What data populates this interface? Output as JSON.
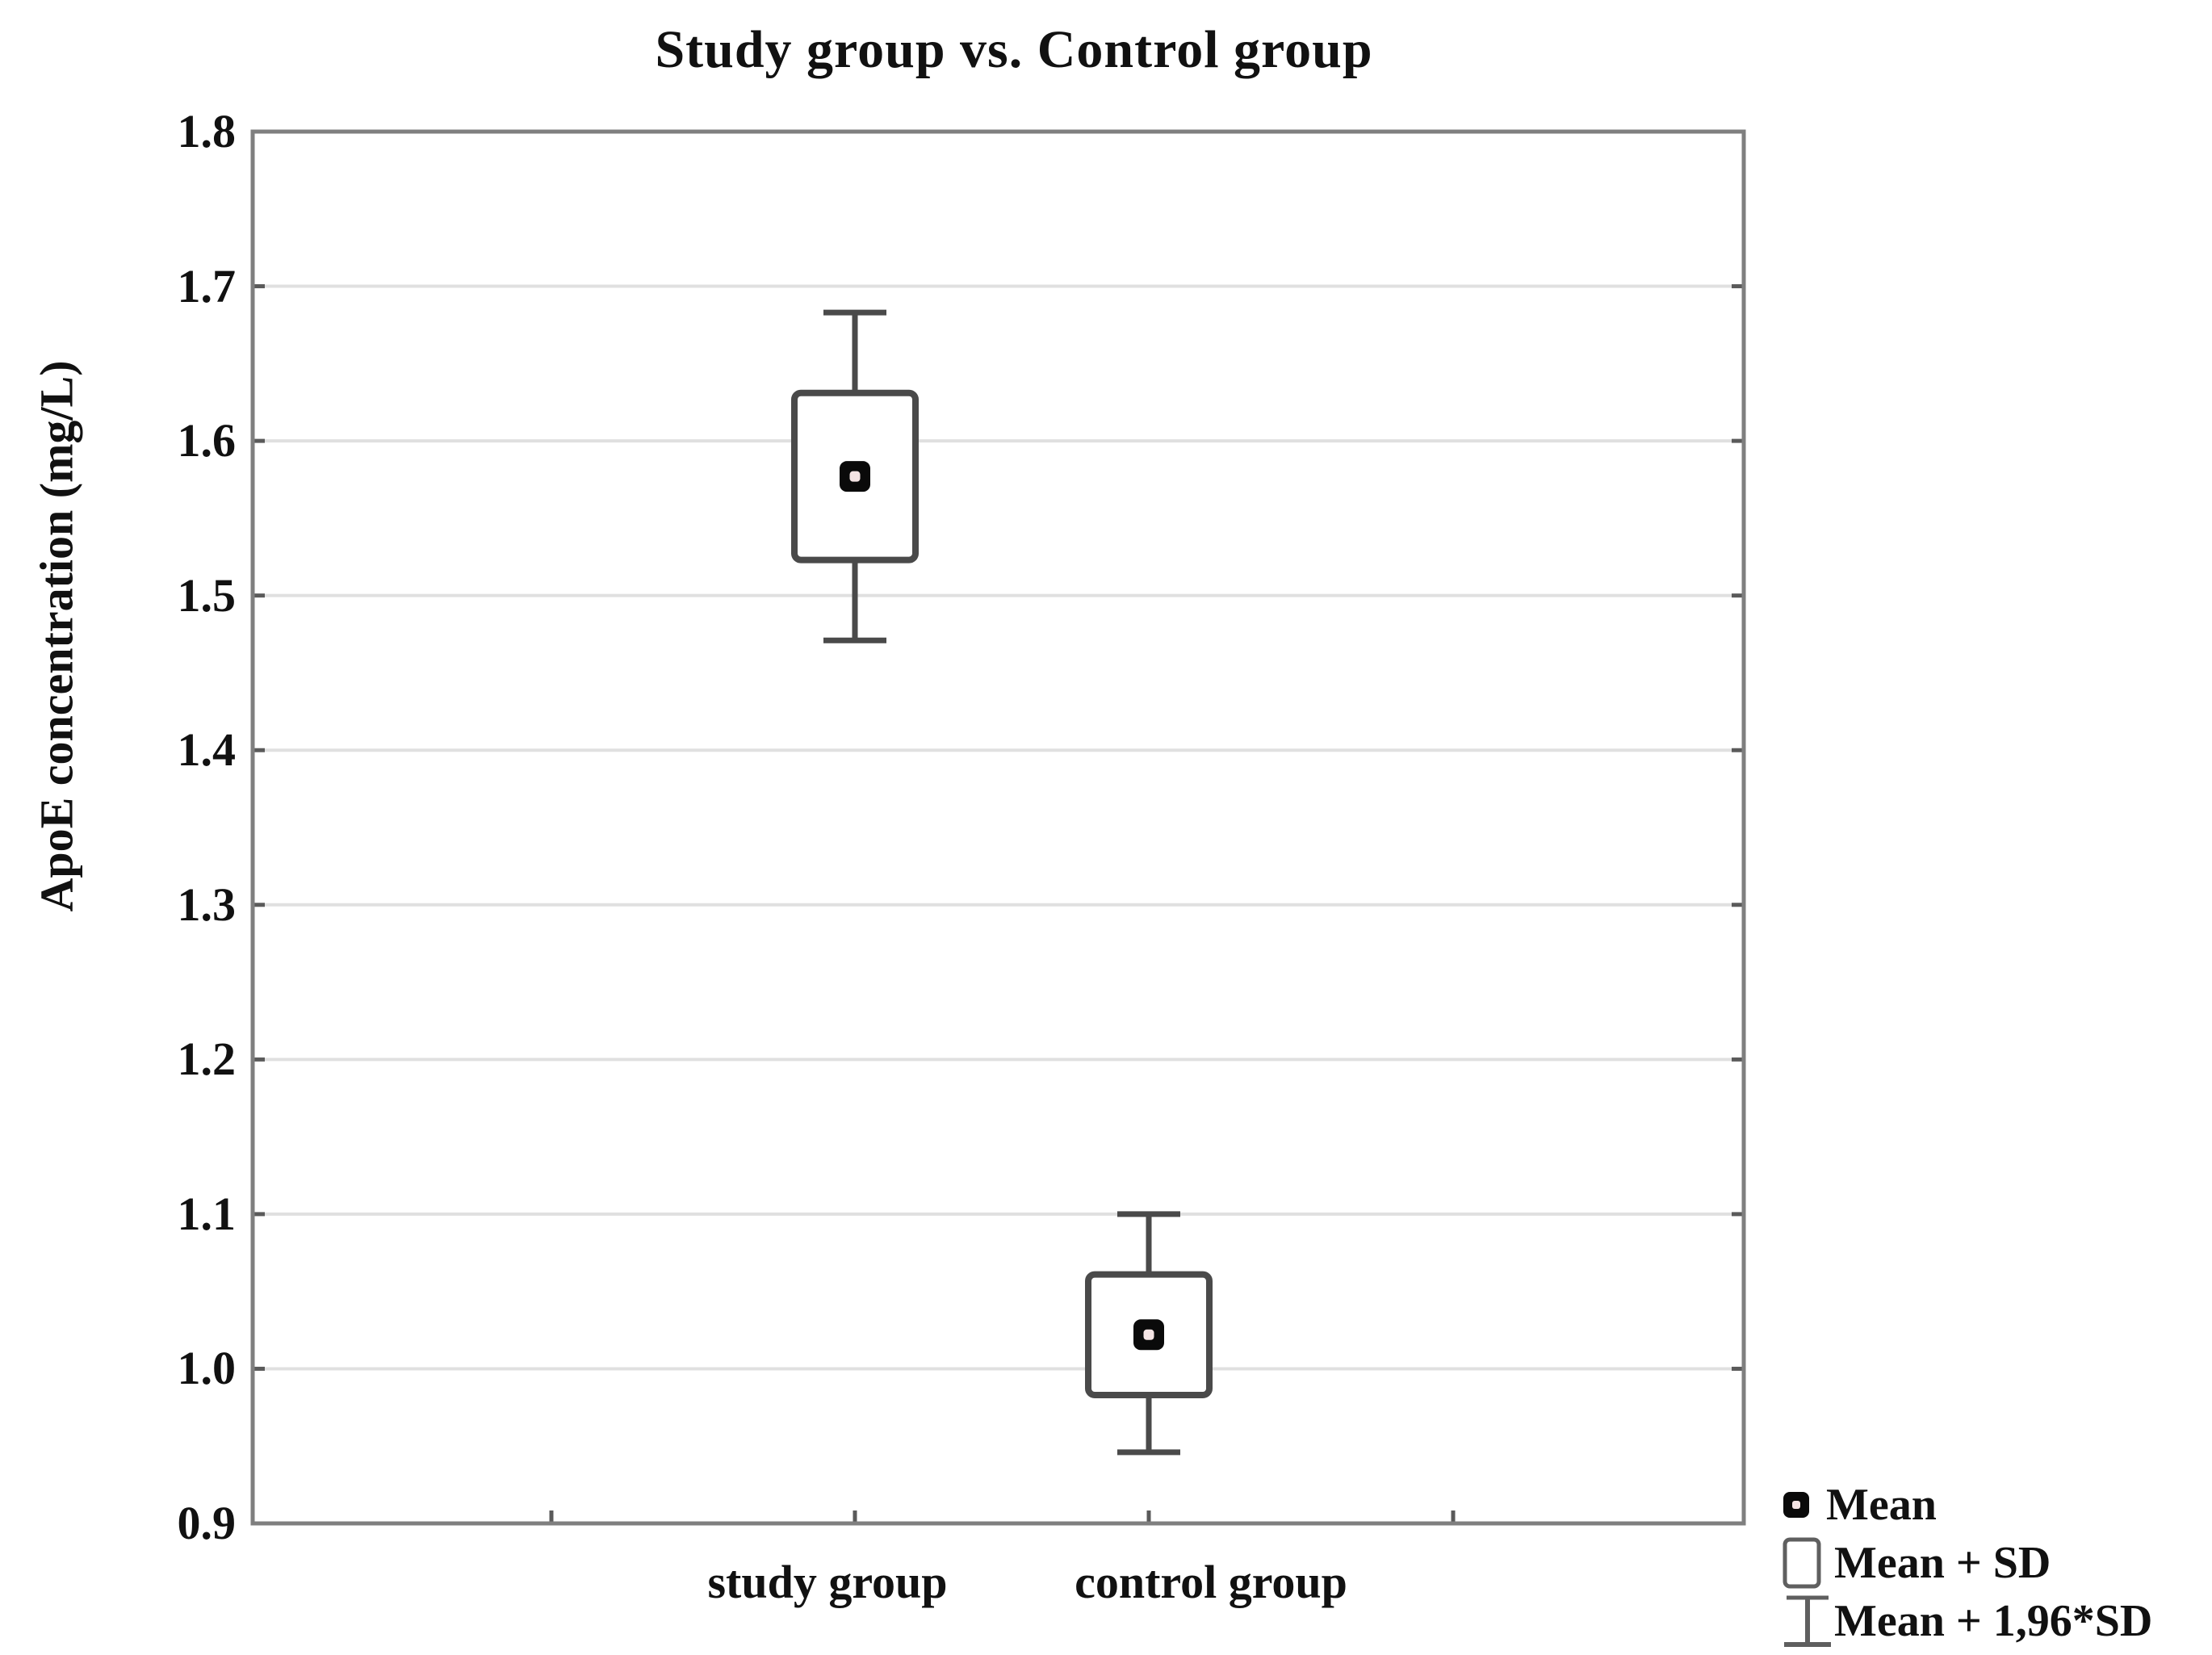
{
  "chart_data": {
    "type": "box",
    "title": "Study group vs. Control group",
    "xlabel": "",
    "ylabel": "ApoE concentration (mg/L)",
    "ylim": [
      0.9,
      1.8
    ],
    "y_ticks": [
      "1.8",
      "1.7",
      "1.6",
      "1.5",
      "1.4",
      "1.3",
      "1.2",
      "1.1",
      "1.0",
      "0.9"
    ],
    "grid": "horizontal",
    "categories": [
      "study group",
      "control group"
    ],
    "series": [
      {
        "name": "study group",
        "mean": 1.577,
        "sd": 0.054,
        "box_low": 1.523,
        "box_high": 1.631,
        "whisker_low": 1.471,
        "whisker_high": 1.683
      },
      {
        "name": "control group",
        "mean": 1.022,
        "sd": 0.039,
        "box_low": 0.983,
        "box_high": 1.061,
        "whisker_low": 0.946,
        "whisker_high": 1.1
      }
    ],
    "legend": [
      {
        "label": "Mean",
        "marker": "mean-square-icon"
      },
      {
        "label": "Mean + SD",
        "marker": "box-outline-icon"
      },
      {
        "label": "Mean + 1,96*SD",
        "marker": "whisker-icon"
      }
    ],
    "legend_position": "bottom-right",
    "colors": {
      "background": "#ffffff",
      "frame": "#7f7f7f",
      "gridline": "#e0e0e0",
      "tick": "#5a5a5a",
      "box_stroke": "#4a4a4a",
      "box_fill": "#ffffff",
      "mean_fill": "#0a0a0a",
      "mean_center": "#f4e4e4",
      "text": "#111111"
    }
  }
}
